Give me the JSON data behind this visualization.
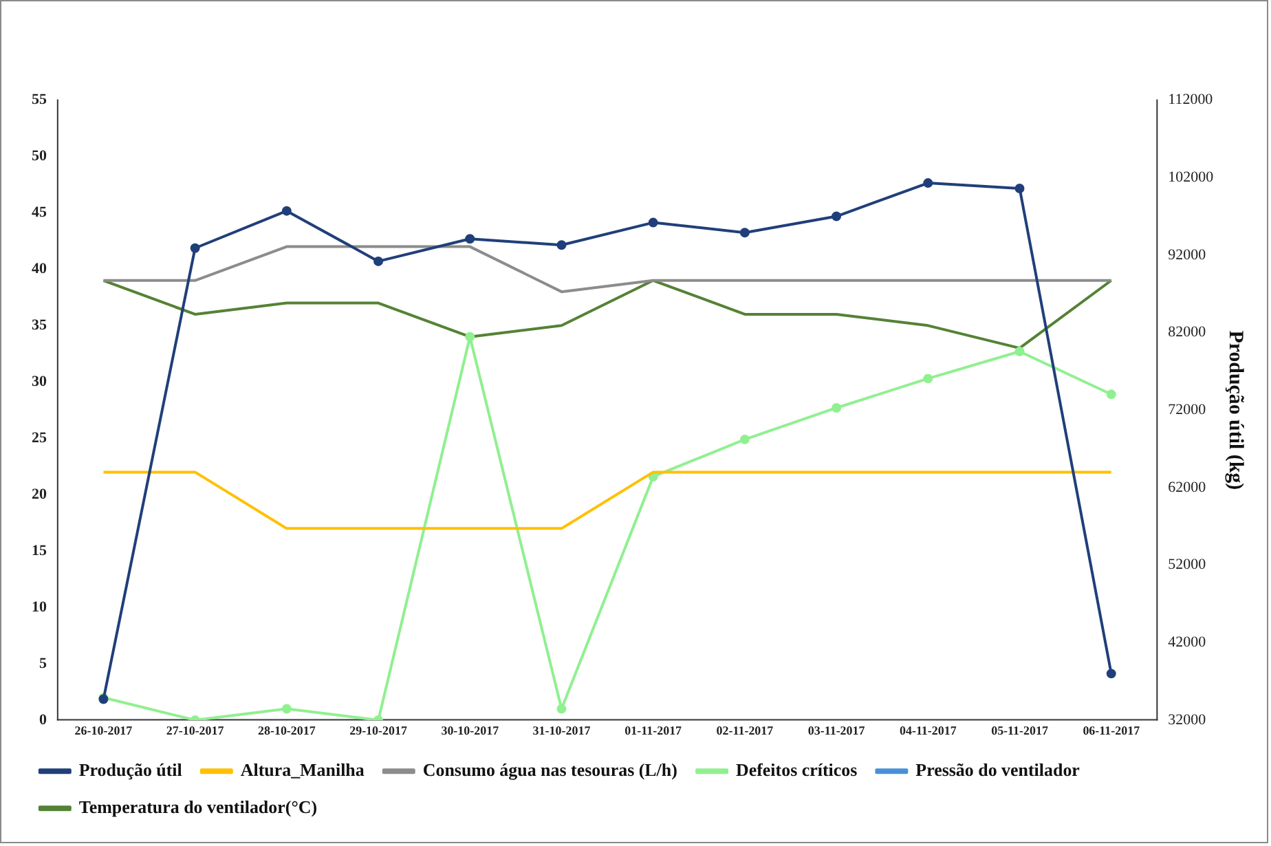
{
  "chart_data": {
    "type": "line",
    "categories": [
      "26-10-2017",
      "27-10-2017",
      "28-10-2017",
      "29-10-2017",
      "30-10-2017",
      "31-10-2017",
      "01-11-2017",
      "02-11-2017",
      "03-11-2017",
      "04-11-2017",
      "05-11-2017",
      "06-11-2017"
    ],
    "series": [
      {
        "name": "Altura_Manilha",
        "color": "#ffc000",
        "marker": "none",
        "values": [
          22,
          22,
          17,
          17,
          17,
          17,
          22,
          22,
          22,
          22,
          22,
          22
        ]
      },
      {
        "name": "Consumo água nas tesouras (L/h)",
        "color": "#8c8c8c",
        "marker": "none",
        "values": [
          39,
          39,
          42,
          42,
          42,
          38,
          39,
          39,
          39,
          39,
          39,
          39
        ]
      },
      {
        "name": "Defeitos críticos",
        "color": "#90f090",
        "marker": "circle",
        "values": [
          2,
          0,
          1,
          0,
          34,
          1,
          21.6,
          24.9,
          27.7,
          30.3,
          32.7,
          28.9
        ]
      },
      {
        "name": "Pressão do ventilador",
        "color": "#4a90d9",
        "marker": "none",
        "values": [
          null,
          null,
          null,
          null,
          null,
          null,
          null,
          null,
          null,
          null,
          null,
          null
        ]
      },
      {
        "name": "Temperatura do ventilador(°C)",
        "color": "#548235",
        "marker": "none",
        "values": [
          39,
          36,
          37,
          37,
          34,
          35,
          39,
          36,
          36,
          35,
          33,
          39
        ]
      },
      {
        "name": "Produção útil",
        "color": "#203f7a",
        "marker": "circle",
        "axis": "y2",
        "values": [
          34700,
          92900,
          97700,
          91200,
          94100,
          93300,
          96200,
          94900,
          97000,
          101300,
          100600,
          38000
        ]
      }
    ],
    "y2label": "Produção útil (kg)",
    "ylim": [
      0,
      55
    ],
    "yticks": [
      0,
      5,
      10,
      15,
      20,
      25,
      30,
      35,
      40,
      45,
      50,
      55
    ],
    "y2lim": [
      32000,
      112000
    ],
    "y2ticks": [
      32000,
      42000,
      52000,
      62000,
      72000,
      82000,
      92000,
      102000,
      112000
    ],
    "grid": false,
    "legend": "bottom",
    "line_style": "solid"
  }
}
